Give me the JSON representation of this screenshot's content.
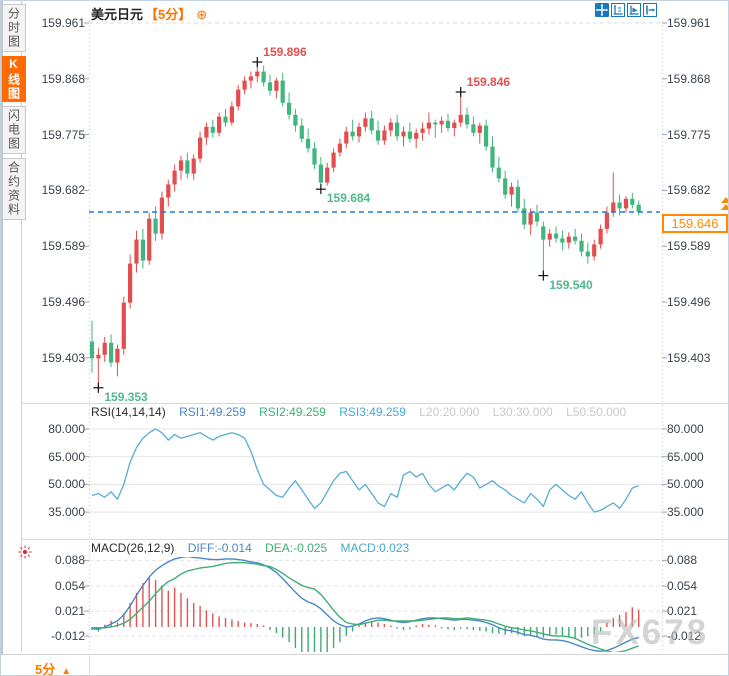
{
  "window": {
    "watermark": "FX678"
  },
  "sidebar": {
    "tabs": [
      {
        "label": "分时图",
        "active": false
      },
      {
        "label": "K线图",
        "active": true
      },
      {
        "label": "闪电图",
        "active": false
      },
      {
        "label": "合约资料",
        "active": false
      }
    ]
  },
  "header": {
    "symbol": "美元日元",
    "period_tag": "【5分】",
    "add_icon": "⊕"
  },
  "toolbar": {
    "icons": [
      "pan-icon",
      "zoom-y-axis-icon",
      "zoom-x-axis-icon",
      "shift-right-icon"
    ]
  },
  "colors": {
    "up": "#e34d4d",
    "down": "#41b57e",
    "ann_red": "#e0504e",
    "ann_green": "#4fba8c",
    "dashed_blue": "#1f7de0",
    "orange": "#ff8a00",
    "rsi_line": "#56aed6",
    "diff_line": "#4a86c8",
    "dea_line": "#3fae76",
    "hist_red": "#df5353",
    "hist_green": "#3fa873",
    "grid": "#e3e3e3",
    "tick": "#9aa4ad",
    "dotted_border": "#b8c2cc"
  },
  "main_chart": {
    "y_labels": [
      "159.961",
      "159.868",
      "159.775",
      "159.682",
      "159.589",
      "159.496",
      "159.403"
    ],
    "current_price_label": "159.646"
  },
  "rsi_panel": {
    "title": "RSI(14,14,14)",
    "rsi1": "RSI1:49.259",
    "rsi2": "RSI2:49.259",
    "rsi3": "RSI3:49.259",
    "l20": "L20:20.000",
    "l30": "L30:30.000",
    "l50": "L50:50.000",
    "y_labels": [
      "80.000",
      "65.000",
      "50.000",
      "35.000"
    ]
  },
  "macd_panel": {
    "title": "MACD(26,12,9)",
    "diff": "DIFF:-0.014",
    "dea": "DEA:-0.025",
    "macd": "MACD:0.023",
    "y_labels": [
      "0.088",
      "0.054",
      "0.021",
      "-0.012"
    ]
  },
  "bottom_bar": {
    "period": "5分",
    "arrow": "▲"
  },
  "chart_data": {
    "type": "candlestick",
    "symbol": "美元日元",
    "interval": "5分",
    "current_price": 159.646,
    "main": {
      "ylim": [
        159.353,
        159.961
      ],
      "y_ticks": [
        159.961,
        159.868,
        159.775,
        159.682,
        159.589,
        159.496,
        159.403
      ],
      "annotations": [
        {
          "candle": 1,
          "price": 159.353,
          "text": "159.353",
          "color": "green",
          "side": "below"
        },
        {
          "candle": 26,
          "price": 159.896,
          "text": "159.896",
          "color": "red",
          "side": "above"
        },
        {
          "candle": 36,
          "price": 159.684,
          "text": "159.684",
          "color": "green",
          "side": "below"
        },
        {
          "candle": 58,
          "price": 159.846,
          "text": "159.846",
          "color": "red",
          "side": "above"
        },
        {
          "candle": 71,
          "price": 159.54,
          "text": "159.540",
          "color": "green",
          "side": "below"
        }
      ],
      "candles": [
        [
          159.43,
          159.465,
          159.378,
          159.402
        ],
        [
          159.402,
          159.42,
          159.353,
          159.408
        ],
        [
          159.408,
          159.438,
          159.396,
          159.428
        ],
        [
          159.428,
          159.442,
          159.388,
          159.395
        ],
        [
          159.395,
          159.425,
          159.372,
          159.418
        ],
        [
          159.418,
          159.505,
          159.408,
          159.495
        ],
        [
          159.495,
          159.575,
          159.485,
          159.56
        ],
        [
          159.56,
          159.615,
          159.545,
          159.6
        ],
        [
          159.6,
          159.618,
          159.552,
          159.565
        ],
        [
          159.565,
          159.645,
          159.558,
          159.635
        ],
        [
          159.635,
          159.655,
          159.598,
          159.61
        ],
        [
          159.61,
          159.68,
          159.6,
          159.67
        ],
        [
          159.67,
          159.7,
          159.655,
          159.692
        ],
        [
          159.692,
          159.725,
          159.68,
          159.715
        ],
        [
          159.715,
          159.74,
          159.7,
          159.732
        ],
        [
          159.732,
          159.745,
          159.702,
          159.71
        ],
        [
          159.71,
          159.742,
          159.7,
          159.735
        ],
        [
          159.735,
          159.78,
          159.728,
          159.77
        ],
        [
          159.77,
          159.795,
          159.758,
          159.788
        ],
        [
          159.788,
          159.8,
          159.77,
          159.778
        ],
        [
          159.778,
          159.812,
          159.772,
          159.805
        ],
        [
          159.805,
          159.818,
          159.788,
          159.795
        ],
        [
          159.795,
          159.83,
          159.79,
          159.822
        ],
        [
          159.822,
          159.858,
          159.815,
          159.85
        ],
        [
          159.85,
          159.872,
          159.842,
          159.865
        ],
        [
          159.865,
          159.88,
          159.852,
          159.872
        ],
        [
          159.872,
          159.896,
          159.862,
          159.88
        ],
        [
          159.88,
          159.89,
          159.855,
          159.862
        ],
        [
          159.862,
          159.875,
          159.84,
          159.848
        ],
        [
          159.848,
          159.87,
          159.835,
          159.865
        ],
        [
          159.865,
          159.878,
          159.822,
          159.828
        ],
        [
          159.828,
          159.845,
          159.8,
          159.808
        ],
        [
          159.808,
          159.818,
          159.78,
          159.79
        ],
        [
          159.79,
          159.802,
          159.762,
          159.768
        ],
        [
          159.768,
          159.785,
          159.745,
          159.752
        ],
        [
          159.752,
          159.762,
          159.718,
          159.725
        ],
        [
          159.725,
          159.738,
          159.684,
          159.695
        ],
        [
          159.695,
          159.728,
          159.69,
          159.72
        ],
        [
          159.72,
          159.752,
          159.712,
          159.745
        ],
        [
          159.745,
          159.768,
          159.738,
          159.76
        ],
        [
          159.76,
          159.788,
          159.752,
          159.78
        ],
        [
          159.78,
          159.8,
          159.765,
          159.772
        ],
        [
          159.772,
          159.795,
          159.762,
          159.788
        ],
        [
          159.788,
          159.812,
          159.78,
          159.802
        ],
        [
          159.802,
          159.815,
          159.775,
          159.782
        ],
        [
          159.782,
          159.798,
          159.758,
          159.765
        ],
        [
          159.765,
          159.79,
          159.758,
          159.782
        ],
        [
          159.782,
          159.802,
          159.772,
          159.795
        ],
        [
          159.795,
          159.808,
          159.765,
          159.772
        ],
        [
          159.772,
          159.788,
          159.755,
          159.78
        ],
        [
          159.78,
          159.795,
          159.762,
          159.768
        ],
        [
          159.768,
          159.785,
          159.752,
          159.778
        ],
        [
          159.778,
          159.795,
          159.765,
          159.785
        ],
        [
          159.785,
          159.812,
          159.775,
          159.795
        ],
        [
          159.795,
          159.8,
          159.77,
          159.792
        ],
        [
          159.792,
          159.805,
          159.778,
          159.798
        ],
        [
          159.798,
          159.81,
          159.78,
          159.786
        ],
        [
          159.786,
          159.8,
          159.772,
          159.795
        ],
        [
          159.795,
          159.846,
          159.788,
          159.808
        ],
        [
          159.808,
          159.82,
          159.785,
          159.792
        ],
        [
          159.792,
          159.805,
          159.772,
          159.778
        ],
        [
          159.778,
          159.795,
          159.76,
          159.79
        ],
        [
          159.79,
          159.8,
          159.748,
          159.755
        ],
        [
          159.755,
          159.772,
          159.712,
          159.72
        ],
        [
          159.72,
          159.738,
          159.695,
          159.702
        ],
        [
          159.702,
          159.715,
          159.668,
          159.675
        ],
        [
          159.675,
          159.695,
          159.655,
          159.688
        ],
        [
          159.688,
          159.7,
          159.645,
          159.652
        ],
        [
          159.652,
          159.668,
          159.618,
          159.625
        ],
        [
          159.625,
          159.652,
          159.608,
          159.645
        ],
        [
          159.645,
          159.658,
          159.622,
          159.63
        ],
        [
          159.622,
          159.63,
          159.54,
          159.6
        ],
        [
          159.6,
          159.618,
          159.588,
          159.61
        ],
        [
          159.61,
          159.622,
          159.595,
          159.602
        ],
        [
          159.602,
          159.615,
          159.582,
          159.595
        ],
        [
          159.595,
          159.612,
          159.585,
          159.605
        ],
        [
          159.605,
          159.618,
          159.592,
          159.598
        ],
        [
          159.598,
          159.61,
          159.572,
          159.58
        ],
        [
          159.58,
          159.595,
          159.56,
          159.572
        ],
        [
          159.572,
          159.6,
          159.565,
          159.592
        ],
        [
          159.592,
          159.625,
          159.585,
          159.618
        ],
        [
          159.618,
          159.655,
          159.61,
          159.645
        ],
        [
          159.645,
          159.712,
          159.638,
          159.662
        ],
        [
          159.662,
          159.675,
          159.64,
          159.652
        ],
        [
          159.652,
          159.672,
          159.645,
          159.668
        ],
        [
          159.668,
          159.678,
          159.652,
          159.658
        ],
        [
          159.658,
          159.665,
          159.64,
          159.646
        ]
      ]
    },
    "rsi": {
      "params": "RSI(14,14,14)",
      "y_ticks": [
        80,
        65,
        50,
        35
      ],
      "values": [
        44,
        45,
        43,
        46,
        42,
        50,
        62,
        70,
        75,
        78,
        80,
        78,
        74,
        77,
        75,
        76,
        77,
        78,
        76,
        74,
        76,
        77,
        78,
        77,
        75,
        68,
        58,
        50,
        47,
        44,
        43,
        48,
        52,
        47,
        42,
        37,
        40,
        46,
        52,
        56,
        57,
        52,
        47,
        50,
        45,
        40,
        38,
        45,
        43,
        55,
        57,
        54,
        56,
        50,
        46,
        48,
        50,
        47,
        52,
        56,
        54,
        48,
        50,
        52,
        49,
        47,
        44,
        42,
        40,
        45,
        42,
        38,
        47,
        50,
        47,
        44,
        42,
        46,
        40,
        35,
        36,
        38,
        40,
        37,
        42,
        48,
        49.3
      ]
    },
    "macd": {
      "params": "MACD(26,12,9)",
      "y_ticks": [
        0.088,
        0.054,
        0.021,
        -0.012
      ],
      "diff": [
        -0.002,
        -0.003,
        0.0,
        0.004,
        0.008,
        0.016,
        0.028,
        0.042,
        0.055,
        0.066,
        0.075,
        0.081,
        0.086,
        0.09,
        0.092,
        0.093,
        0.092,
        0.091,
        0.09,
        0.089,
        0.089,
        0.09,
        0.09,
        0.089,
        0.088,
        0.086,
        0.085,
        0.082,
        0.078,
        0.072,
        0.064,
        0.055,
        0.046,
        0.038,
        0.033,
        0.03,
        0.024,
        0.016,
        0.008,
        0.003,
        0.0,
        0.001,
        0.004,
        0.008,
        0.011,
        0.012,
        0.011,
        0.009,
        0.007,
        0.006,
        0.007,
        0.009,
        0.011,
        0.012,
        0.012,
        0.011,
        0.01,
        0.009,
        0.01,
        0.01,
        0.009,
        0.008,
        0.006,
        0.003,
        -0.001,
        -0.004,
        -0.005,
        -0.007,
        -0.01,
        -0.011,
        -0.013,
        -0.016,
        -0.017,
        -0.017,
        -0.018,
        -0.02,
        -0.023,
        -0.026,
        -0.029,
        -0.031,
        -0.032,
        -0.031,
        -0.028,
        -0.024,
        -0.02,
        -0.016,
        -0.014
      ],
      "dea": [
        -0.001,
        -0.001,
        -0.001,
        0.0,
        0.002,
        0.005,
        0.01,
        0.018,
        0.026,
        0.034,
        0.044,
        0.053,
        0.06,
        0.064,
        0.07,
        0.074,
        0.076,
        0.078,
        0.079,
        0.08,
        0.082,
        0.084,
        0.085,
        0.085,
        0.085,
        0.084,
        0.083,
        0.081,
        0.08,
        0.076,
        0.071,
        0.065,
        0.06,
        0.055,
        0.052,
        0.05,
        0.043,
        0.033,
        0.022,
        0.013,
        0.006,
        0.004,
        0.003,
        0.005,
        0.007,
        0.009,
        0.009,
        0.008,
        0.008,
        0.008,
        0.008,
        0.008,
        0.009,
        0.01,
        0.011,
        0.012,
        0.012,
        0.011,
        0.011,
        0.012,
        0.011,
        0.01,
        0.009,
        0.007,
        0.004,
        0.001,
        -0.001,
        -0.002,
        -0.004,
        -0.005,
        -0.007,
        -0.009,
        -0.011,
        -0.012,
        -0.012,
        -0.013,
        -0.015,
        -0.019,
        -0.023,
        -0.026,
        -0.029,
        -0.032,
        -0.034,
        -0.033,
        -0.031,
        -0.028,
        -0.025
      ],
      "hist": [
        -0.004,
        -0.006,
        0.003,
        0.008,
        0.006,
        0.018,
        0.032,
        0.045,
        0.058,
        0.065,
        0.062,
        0.055,
        0.048,
        0.052,
        0.045,
        0.038,
        0.032,
        0.028,
        0.022,
        0.018,
        0.014,
        0.012,
        0.01,
        0.008,
        0.006,
        0.005,
        0.004,
        0.002,
        -0.004,
        -0.008,
        -0.014,
        -0.02,
        -0.028,
        -0.034,
        -0.038,
        -0.04,
        -0.038,
        -0.034,
        -0.028,
        -0.02,
        -0.012,
        -0.006,
        0.002,
        0.006,
        0.008,
        0.006,
        0.004,
        0.002,
        -0.002,
        -0.004,
        -0.003,
        0.002,
        0.004,
        0.003,
        0.002,
        -0.002,
        -0.003,
        -0.004,
        -0.002,
        -0.003,
        -0.004,
        -0.005,
        -0.006,
        -0.008,
        -0.009,
        -0.01,
        -0.008,
        -0.01,
        -0.012,
        -0.01,
        -0.012,
        -0.014,
        -0.012,
        -0.01,
        -0.012,
        -0.014,
        -0.016,
        -0.014,
        -0.012,
        -0.01,
        -0.006,
        0.006,
        0.012,
        0.016,
        0.02,
        0.026,
        0.023
      ]
    }
  }
}
